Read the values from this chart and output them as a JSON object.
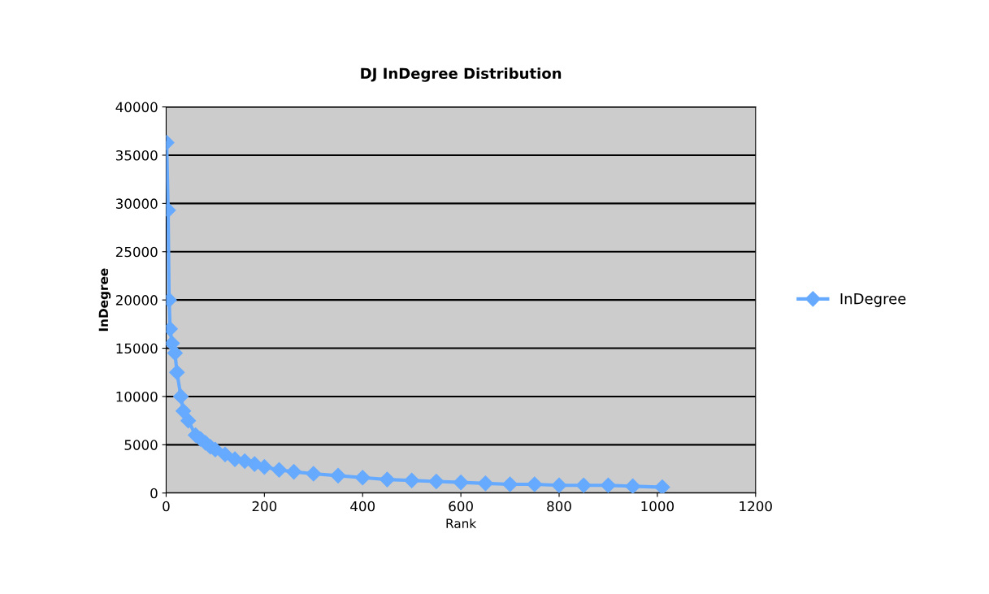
{
  "chart_data": {
    "type": "line",
    "title": "DJ InDegree Distribution",
    "xlabel": "Rank",
    "ylabel": "InDegree",
    "xlim": [
      0,
      1200
    ],
    "xticks": [
      0,
      200,
      400,
      600,
      800,
      1000,
      1200
    ],
    "ylim": [
      0,
      40000
    ],
    "yticks": [
      0,
      5000,
      10000,
      15000,
      20000,
      25000,
      30000,
      35000,
      40000
    ],
    "grid": "y",
    "legend": "right",
    "marker": "diamond",
    "line_style": "solid",
    "series": [
      {
        "name": "InDegree",
        "color": "#66aaff",
        "x": [
          1,
          4,
          6,
          8,
          12,
          18,
          22,
          30,
          35,
          45,
          60,
          70,
          80,
          90,
          100,
          120,
          140,
          160,
          180,
          200,
          230,
          260,
          300,
          350,
          400,
          450,
          500,
          550,
          600,
          650,
          700,
          750,
          800,
          850,
          900,
          950,
          1010
        ],
        "values": [
          36300,
          29300,
          20000,
          17000,
          15500,
          14500,
          12500,
          10000,
          8500,
          7500,
          6000,
          5600,
          5200,
          4800,
          4500,
          4000,
          3500,
          3300,
          3000,
          2700,
          2400,
          2200,
          2000,
          1800,
          1600,
          1400,
          1300,
          1200,
          1100,
          1000,
          900,
          900,
          800,
          800,
          800,
          700,
          600
        ]
      }
    ]
  }
}
